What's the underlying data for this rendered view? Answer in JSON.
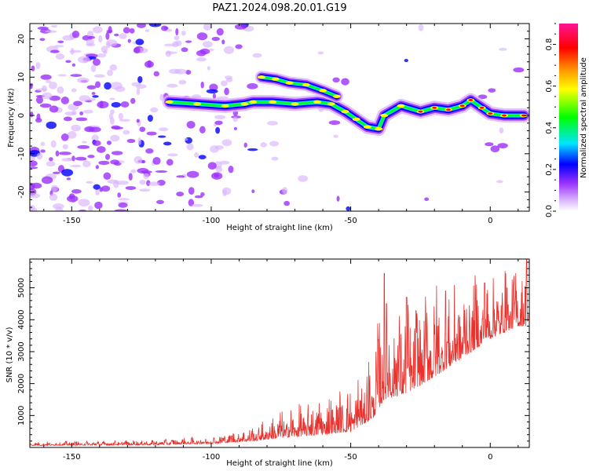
{
  "title": "PAZ1.2024.098.20.01.G19",
  "chart_data": [
    {
      "type": "heatmap",
      "xlabel": "Height of straight line (km)",
      "ylabel": "Frequency (Hz)",
      "xlim": [
        -165,
        14
      ],
      "ylim": [
        -25,
        24
      ],
      "xticks": [
        -150,
        -100,
        -50,
        0
      ],
      "yticks": [
        -20,
        -10,
        0,
        10,
        20
      ],
      "colorbar": {
        "label": "Normalized spectral amplitude",
        "ticks": [
          0.0,
          0.2,
          0.4,
          0.6,
          0.8
        ],
        "range": [
          0,
          0.9
        ],
        "colormap": [
          "#ffffff",
          "#d9b3ff",
          "#9b30ff",
          "#0000ff",
          "#00e5ff",
          "#00ff00",
          "#ffff00",
          "#ff8c00",
          "#ff0000",
          "#ff1493"
        ]
      },
      "ridge": [
        {
          "x": -115,
          "y": 3.5
        },
        {
          "x": -105,
          "y": 3
        },
        {
          "x": -95,
          "y": 2.5
        },
        {
          "x": -88,
          "y": 3
        },
        {
          "x": -85,
          "y": 3.5
        },
        {
          "x": -78,
          "y": 3.5
        },
        {
          "x": -70,
          "y": 3
        },
        {
          "x": -62,
          "y": 3.5
        },
        {
          "x": -57,
          "y": 3
        },
        {
          "x": -52,
          "y": 1
        },
        {
          "x": -48,
          "y": -1
        },
        {
          "x": -44,
          "y": -3
        },
        {
          "x": -40,
          "y": -3.5
        },
        {
          "x": -38,
          "y": 0
        },
        {
          "x": -32,
          "y": 2.5
        },
        {
          "x": -25,
          "y": 1
        },
        {
          "x": -20,
          "y": 2
        },
        {
          "x": -15,
          "y": 1.5
        },
        {
          "x": -10,
          "y": 2.5
        },
        {
          "x": -7,
          "y": 4
        },
        {
          "x": -3,
          "y": 2
        },
        {
          "x": 0,
          "y": 0.5
        },
        {
          "x": 5,
          "y": 0
        },
        {
          "x": 12,
          "y": 0
        }
      ],
      "upper_branch": [
        {
          "x": -82,
          "y": 10
        },
        {
          "x": -77,
          "y": 9.5
        },
        {
          "x": -72,
          "y": 8.5
        },
        {
          "x": -66,
          "y": 8
        },
        {
          "x": -60,
          "y": 6.5
        },
        {
          "x": -55,
          "y": 5
        }
      ]
    },
    {
      "type": "line",
      "xlabel": "Height of straight line (km)",
      "ylabel": "SNR (10 * v/v)",
      "xlim": [
        -165,
        14
      ],
      "ylim": [
        0,
        5900
      ],
      "xticks": [
        -150,
        -100,
        -50,
        0
      ],
      "yticks": [
        1000,
        2000,
        3000,
        4000,
        5000
      ],
      "color": "#e8322e",
      "envelope": [
        {
          "x": -165,
          "base": 60,
          "amp": 120
        },
        {
          "x": -120,
          "base": 80,
          "amp": 180
        },
        {
          "x": -100,
          "base": 120,
          "amp": 250
        },
        {
          "x": -85,
          "base": 200,
          "amp": 500
        },
        {
          "x": -75,
          "base": 300,
          "amp": 900
        },
        {
          "x": -60,
          "base": 400,
          "amp": 1300
        },
        {
          "x": -50,
          "base": 500,
          "amp": 1500
        },
        {
          "x": -42,
          "base": 900,
          "amp": 2300
        },
        {
          "x": -38,
          "base": 1500,
          "amp": 3600
        },
        {
          "x": -30,
          "base": 1700,
          "amp": 3000
        },
        {
          "x": -20,
          "base": 2200,
          "amp": 3200
        },
        {
          "x": -10,
          "base": 2800,
          "amp": 2600
        },
        {
          "x": 0,
          "base": 3400,
          "amp": 2200
        },
        {
          "x": 10,
          "base": 3800,
          "amp": 1900
        }
      ],
      "peaks": [
        {
          "x": -38,
          "y": 5450
        },
        {
          "x": -30,
          "y": 4700
        },
        {
          "x": -16,
          "y": 4900
        },
        {
          "x": -2,
          "y": 5150
        },
        {
          "x": 6,
          "y": 5000
        },
        {
          "x": 13,
          "y": 5900
        }
      ]
    }
  ]
}
